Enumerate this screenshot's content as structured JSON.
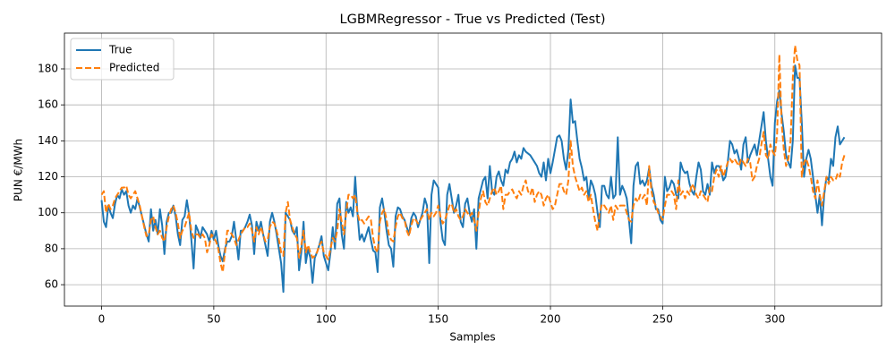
{
  "chart_data": {
    "type": "line",
    "title": "LGBMRegressor - True vs Predicted (Test)",
    "x_label": "Samples",
    "y_label": "PUN €/MWh",
    "xlim": [
      -16.55,
      347.55
    ],
    "ylim": [
      48.1,
      199.9
    ],
    "xticks": [
      0,
      50,
      100,
      150,
      200,
      250,
      300
    ],
    "yticks": [
      60,
      80,
      100,
      120,
      140,
      160,
      180
    ],
    "grid": true,
    "legend": "upper left",
    "series": [
      {
        "name": "True",
        "color": "#1f77b4",
        "dashed": false,
        "values": [
          107,
          95,
          92,
          104,
          100,
          97,
          105,
          110,
          108,
          113,
          110,
          112,
          104,
          100,
          104,
          102,
          108,
          103,
          98,
          93,
          88,
          84,
          102,
          90,
          96,
          88,
          102,
          93,
          77,
          95,
          100,
          100,
          104,
          98,
          88,
          82,
          96,
          98,
          107,
          99,
          85,
          69,
          93,
          90,
          86,
          92,
          90,
          88,
          84,
          90,
          85,
          90,
          82,
          76,
          73,
          80,
          84,
          84,
          87,
          95,
          85,
          74,
          90,
          90,
          92,
          95,
          99,
          93,
          77,
          95,
          90,
          95,
          88,
          82,
          76,
          95,
          100,
          95,
          88,
          80,
          72,
          56,
          100,
          98,
          96,
          90,
          88,
          92,
          68,
          78,
          95,
          72,
          80,
          75,
          61,
          75,
          78,
          82,
          87,
          76,
          72,
          68,
          78,
          92,
          80,
          105,
          108,
          88,
          80,
          106,
          100,
          103,
          98,
          120,
          100,
          85,
          88,
          84,
          88,
          92,
          85,
          79,
          78,
          67,
          103,
          108,
          100,
          90,
          82,
          80,
          70,
          98,
          103,
          102,
          98,
          96,
          92,
          88,
          97,
          100,
          98,
          92,
          96,
          100,
          108,
          104,
          72,
          110,
          118,
          116,
          114,
          95,
          85,
          82,
          110,
          116,
          108,
          100,
          104,
          110,
          95,
          92,
          105,
          108,
          100,
          95,
          102,
          80,
          108,
          113,
          118,
          120,
          108,
          126,
          112,
          110,
          120,
          123,
          118,
          115,
          124,
          122,
          128,
          130,
          134,
          128,
          132,
          130,
          136,
          134,
          133,
          132,
          130,
          128,
          126,
          122,
          120,
          128,
          118,
          130,
          122,
          128,
          135,
          142,
          143,
          140,
          130,
          124,
          135,
          163,
          150,
          151,
          140,
          130,
          125,
          118,
          120,
          108,
          118,
          115,
          110,
          100,
          92,
          115,
          115,
          110,
          108,
          120,
          108,
          110,
          142,
          110,
          115,
          112,
          108,
          96,
          83,
          115,
          126,
          128,
          116,
          118,
          115,
          118,
          125,
          115,
          110,
          102,
          102,
          96,
          94,
          120,
          112,
          114,
          118,
          116,
          110,
          108,
          128,
          124,
          122,
          123,
          116,
          112,
          110,
          120,
          128,
          124,
          112,
          110,
          116,
          110,
          128,
          122,
          126,
          126,
          124,
          118,
          120,
          128,
          140,
          138,
          133,
          135,
          130,
          124,
          138,
          142,
          128,
          132,
          135,
          138,
          132,
          140,
          148,
          156,
          140,
          130,
          120,
          115,
          150,
          162,
          168,
          155,
          145,
          132,
          128,
          125,
          140,
          182,
          175,
          175,
          150,
          120,
          130,
          135,
          130,
          120,
          110,
          100,
          110,
          93,
          110,
          120,
          118,
          130,
          126,
          142,
          148,
          138,
          140,
          142
        ]
      },
      {
        "name": "Predicted",
        "color": "#ff7f0e",
        "dashed": true,
        "values": [
          110,
          112,
          100,
          105,
          102,
          104,
          108,
          110,
          112,
          114,
          114,
          115,
          110,
          108,
          110,
          112,
          108,
          104,
          98,
          92,
          87,
          88,
          96,
          98,
          92,
          88,
          90,
          86,
          84,
          92,
          98,
          102,
          104,
          100,
          94,
          86,
          90,
          92,
          96,
          100,
          90,
          86,
          88,
          88,
          86,
          88,
          86,
          78,
          82,
          88,
          86,
          84,
          80,
          72,
          67,
          78,
          90,
          90,
          88,
          86,
          82,
          85,
          88,
          90,
          92,
          92,
          94,
          90,
          84,
          92,
          88,
          92,
          88,
          84,
          85,
          92,
          95,
          94,
          90,
          85,
          78,
          76,
          100,
          106,
          96,
          92,
          88,
          86,
          75,
          82,
          90,
          78,
          82,
          78,
          75,
          76,
          78,
          82,
          84,
          78,
          76,
          74,
          80,
          86,
          84,
          90,
          102,
          95,
          88,
          100,
          110,
          110,
          108,
          110,
          100,
          95,
          96,
          94,
          96,
          98,
          96,
          86,
          80,
          78,
          95,
          100,
          102,
          96,
          88,
          85,
          84,
          92,
          98,
          100,
          97,
          96,
          90,
          87,
          93,
          97,
          96,
          94,
          96,
          98,
          100,
          102,
          96,
          100,
          98,
          100,
          104,
          98,
          94,
          96,
          100,
          104,
          105,
          100,
          102,
          98,
          96,
          98,
          102,
          100,
          98,
          100,
          96,
          90,
          100,
          108,
          112,
          106,
          104,
          108,
          112,
          114,
          110,
          112,
          115,
          102,
          110,
          110,
          112,
          113,
          110,
          108,
          112,
          110,
          115,
          118,
          112,
          110,
          114,
          106,
          110,
          112,
          110,
          104,
          108,
          110,
          106,
          102,
          104,
          110,
          116,
          116,
          112,
          110,
          118,
          140,
          126,
          120,
          116,
          112,
          114,
          110,
          112,
          106,
          110,
          102,
          95,
          90,
          100,
          105,
          104,
          102,
          100,
          104,
          96,
          104,
          102,
          104,
          104,
          104,
          100,
          96,
          95,
          104,
          108,
          106,
          110,
          108,
          110,
          104,
          126,
          112,
          106,
          104,
          100,
          98,
          96,
          104,
          110,
          110,
          112,
          110,
          102,
          118,
          110,
          112,
          108,
          112,
          110,
          116,
          114,
          110,
          108,
          112,
          110,
          108,
          106,
          114,
          112,
          120,
          124,
          120,
          126,
          120,
          124,
          128,
          130,
          128,
          130,
          128,
          126,
          130,
          128,
          126,
          130,
          128,
          118,
          120,
          126,
          130,
          138,
          145,
          132,
          130,
          138,
          134,
          132,
          144,
          188,
          150,
          135,
          126,
          130,
          140,
          175,
          193,
          185,
          182,
          120,
          128,
          130,
          126,
          120,
          112,
          108,
          118,
          110,
          104,
          112,
          120,
          116,
          120,
          118,
          118,
          122,
          120,
          128,
          132
        ]
      }
    ]
  }
}
